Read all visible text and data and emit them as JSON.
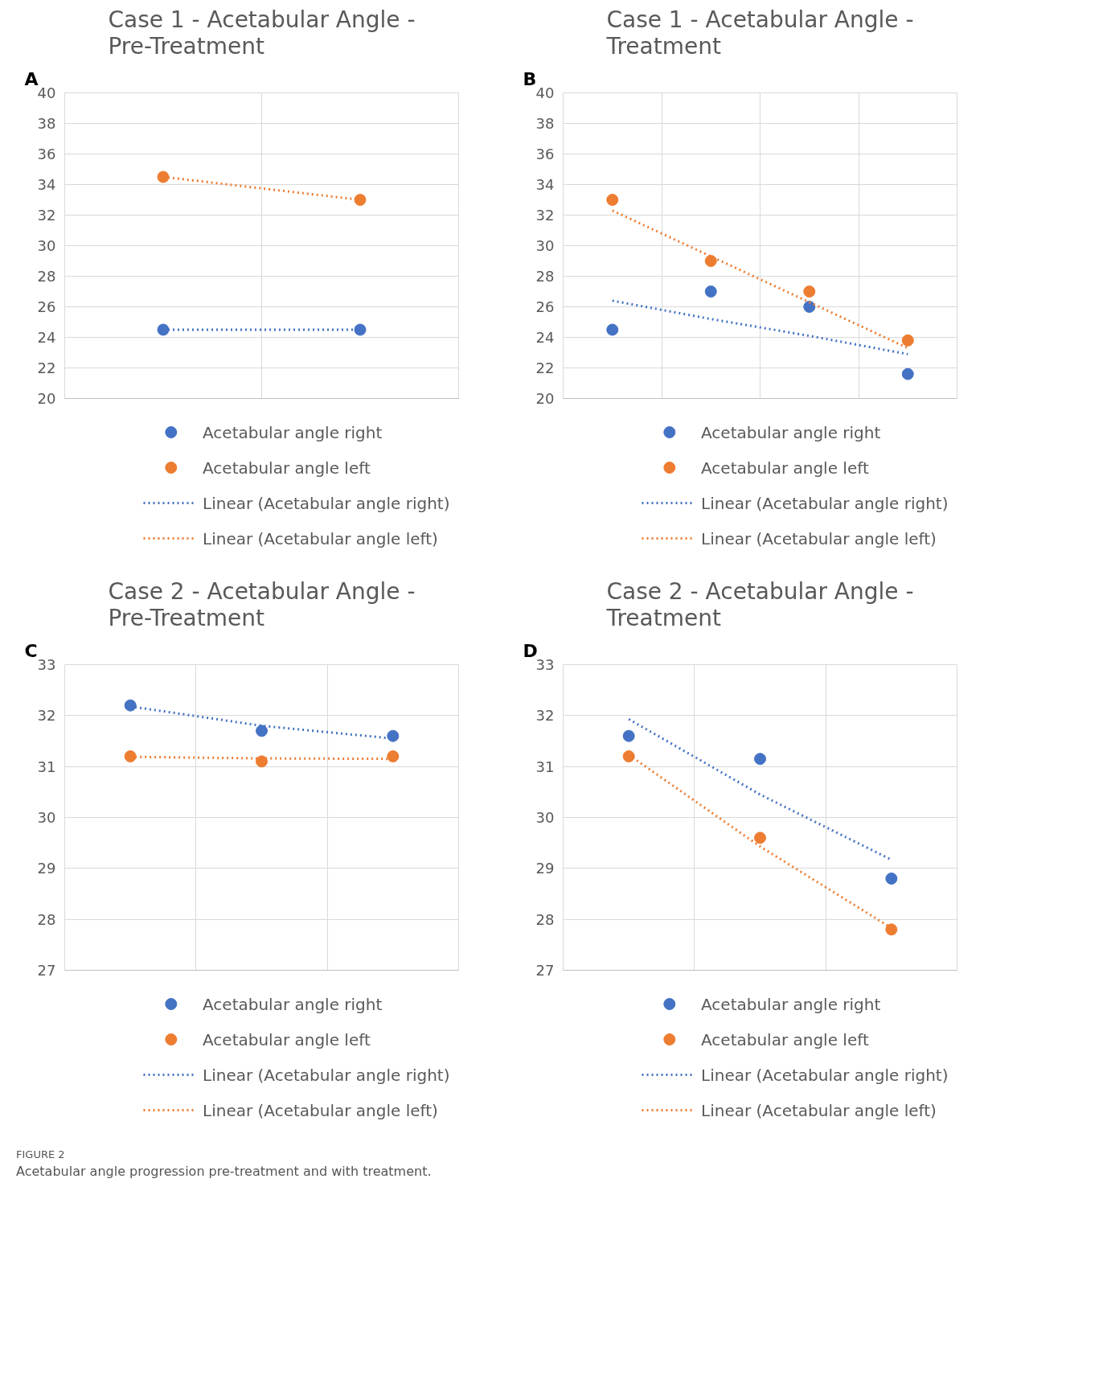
{
  "chart_data": [
    {
      "type": "scatter",
      "title": "Case 1 - Acetabular Angle -\nPre-Treatment",
      "annotations": [
        "A"
      ],
      "categories": [
        null,
        null
      ],
      "ylim": [
        20,
        40
      ],
      "yticks": [
        20,
        22,
        24,
        26,
        28,
        30,
        32,
        34,
        36,
        38,
        40
      ],
      "tick_labels": "y",
      "grid": true,
      "legend": "bottom",
      "series": [
        {
          "name": "Acetabular angle right",
          "color": "#4472c4",
          "values": [
            24.5,
            24.5
          ]
        },
        {
          "name": "Acetabular angle left",
          "color": "#ed7d31",
          "values": [
            34.5,
            33
          ]
        },
        {
          "name": "Linear (Acetabular angle right)",
          "type": "line",
          "line_style": "dotted",
          "color": "#4472c4",
          "values": [
            24.5,
            24.5
          ]
        },
        {
          "name": "Linear (Acetabular angle left)",
          "type": "line",
          "line_style": "dotted",
          "color": "#ed7d31",
          "values": [
            34.5,
            33
          ]
        }
      ]
    },
    {
      "type": "scatter",
      "title": "Case 1 - Acetabular Angle -\nTreatment",
      "annotations": [
        "B"
      ],
      "categories": [
        null,
        null,
        null,
        null
      ],
      "ylim": [
        20,
        40
      ],
      "yticks": [
        20,
        22,
        24,
        26,
        28,
        30,
        32,
        34,
        36,
        38,
        40
      ],
      "tick_labels": "y",
      "grid": true,
      "legend": "bottom",
      "series": [
        {
          "name": "Acetabular angle right",
          "color": "#4472c4",
          "values": [
            24.5,
            27,
            26,
            21.6
          ]
        },
        {
          "name": "Acetabular angle left",
          "color": "#ed7d31",
          "values": [
            33,
            29,
            27,
            23.8
          ]
        },
        {
          "name": "Linear (Acetabular angle right)",
          "type": "line",
          "line_style": "dotted",
          "color": "#4472c4",
          "values": [
            26.4,
            25.2,
            24.1,
            22.9
          ]
        },
        {
          "name": "Linear (Acetabular angle left)",
          "type": "line",
          "line_style": "dotted",
          "color": "#ed7d31",
          "values": [
            32.3,
            29.3,
            26.3,
            23.3
          ]
        }
      ]
    },
    {
      "type": "scatter",
      "title": "Case 2 - Acetabular Angle -\nPre-Treatment",
      "annotations": [
        "C"
      ],
      "categories": [
        null,
        null,
        null
      ],
      "ylim": [
        27,
        33
      ],
      "yticks": [
        27,
        28,
        29,
        30,
        31,
        32,
        33
      ],
      "tick_labels": "y",
      "grid": true,
      "legend": "bottom",
      "series": [
        {
          "name": "Acetabular angle right",
          "color": "#4472c4",
          "values": [
            32.2,
            31.7,
            31.6
          ]
        },
        {
          "name": "Acetabular angle left",
          "color": "#ed7d31",
          "values": [
            31.2,
            31.1,
            31.2
          ]
        },
        {
          "name": "Linear (Acetabular angle right)",
          "type": "line",
          "line_style": "dotted",
          "color": "#4472c4",
          "values": [
            32.18,
            31.8,
            31.55
          ]
        },
        {
          "name": "Linear (Acetabular angle left)",
          "type": "line",
          "line_style": "dotted",
          "color": "#ed7d31",
          "values": [
            31.19,
            31.16,
            31.15
          ]
        }
      ]
    },
    {
      "type": "scatter",
      "title": "Case 2 - Acetabular Angle -\nTreatment",
      "annotations": [
        "D",
        "FIGURE 2",
        "Acetabular angle progression pre-treatment and with treatment."
      ],
      "categories": [
        null,
        null,
        null
      ],
      "ylim": [
        27,
        33
      ],
      "yticks": [
        27,
        28,
        29,
        30,
        31,
        32,
        33
      ],
      "tick_labels": "y",
      "grid": true,
      "legend": "bottom",
      "series": [
        {
          "name": "Acetabular angle right",
          "color": "#4472c4",
          "values": [
            31.6,
            31.15,
            28.8
          ]
        },
        {
          "name": "Acetabular angle left",
          "color": "#ed7d31",
          "values": [
            31.2,
            29.6,
            27.8
          ]
        },
        {
          "name": "Linear (Acetabular angle right)",
          "type": "line",
          "line_style": "dotted",
          "color": "#4472c4",
          "values": [
            31.93,
            30.45,
            29.17
          ]
        },
        {
          "name": "Linear (Acetabular angle left)",
          "type": "line",
          "line_style": "dotted",
          "color": "#ed7d31",
          "values": [
            31.23,
            29.43,
            27.83
          ]
        }
      ]
    }
  ]
}
